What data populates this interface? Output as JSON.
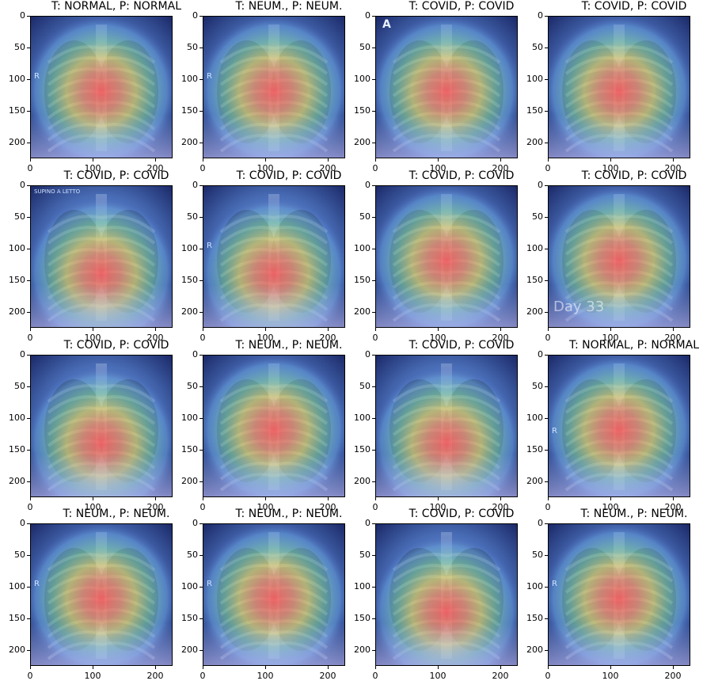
{
  "y_ticks": [
    "0",
    "50",
    "100",
    "150",
    "200"
  ],
  "x_ticks": [
    "0",
    "100",
    "200"
  ],
  "panels": [
    {
      "title": "T: NORMAL, P: NORMAL",
      "focus": "mid",
      "overlay": "R"
    },
    {
      "title": "T: NEUM., P: NEUM.",
      "focus": "mid",
      "overlay": "R"
    },
    {
      "title": "T: COVID, P: COVID",
      "focus": "mid",
      "overlay": "A"
    },
    {
      "title": "T: COVID, P: COVID",
      "focus": "mid",
      "overlay": ""
    },
    {
      "title": "T: COVID, P: COVID",
      "focus": "low",
      "overlay": "SUPINO A LETTO"
    },
    {
      "title": "T: COVID, P: COVID",
      "focus": "low",
      "overlay": "R"
    },
    {
      "title": "T: COVID, P: COVID",
      "focus": "mid",
      "overlay": ""
    },
    {
      "title": "T: COVID, P: COVID",
      "focus": "mid",
      "overlay": "Day 33"
    },
    {
      "title": "T: COVID, P: COVID",
      "focus": "low",
      "overlay": ""
    },
    {
      "title": "T: NEUM., P: NEUM.",
      "focus": "mid",
      "overlay": ""
    },
    {
      "title": "T: COVID, P: COVID",
      "focus": "low",
      "overlay": ""
    },
    {
      "title": "T: NORMAL, P: NORMAL",
      "focus": "mid",
      "overlay": "R"
    },
    {
      "title": "T: NEUM., P: NEUM.",
      "focus": "mid",
      "overlay": "R"
    },
    {
      "title": "T: NEUM., P: NEUM.",
      "focus": "mid",
      "overlay": "R"
    },
    {
      "title": "T: COVID, P: COVID",
      "focus": "low",
      "overlay": ""
    },
    {
      "title": "T: NEUM., P: NEUM.",
      "focus": "mid",
      "overlay": "R"
    }
  ]
}
